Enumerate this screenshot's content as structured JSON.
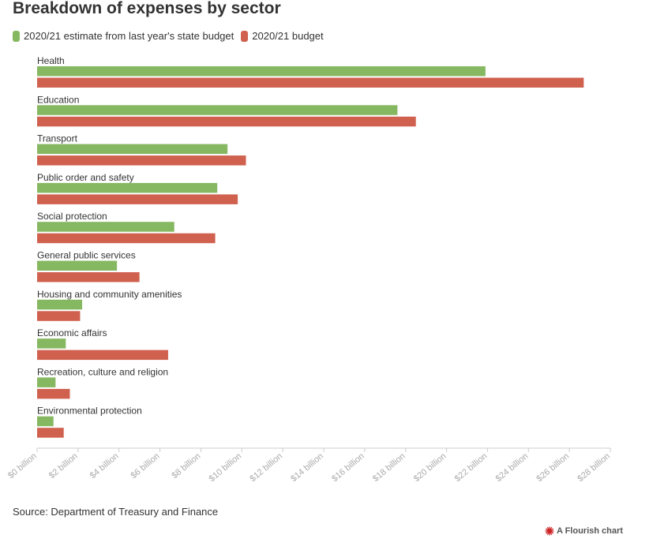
{
  "title": "Breakdown of expenses by sector",
  "source": "Source: Department of Treasury and Finance",
  "credit": "A Flourish chart",
  "colors": {
    "series1": "#86b861",
    "series2": "#d0614f",
    "axis": "#cccccc",
    "credit_icon": "#cc2222"
  },
  "chart_data": {
    "type": "bar",
    "orientation": "horizontal",
    "title": "Breakdown of expenses by sector",
    "categories": [
      "Health",
      "Education",
      "Transport",
      "Public order and safety",
      "Social protection",
      "General public services",
      "Housing and community amenities",
      "Economic affairs",
      "Recreation, culture and religion",
      "Environmental protection"
    ],
    "series": [
      {
        "name": "2020/21 estimate from last year's state budget",
        "values": [
          21.9,
          17.6,
          9.3,
          8.8,
          6.7,
          3.9,
          2.2,
          1.4,
          0.9,
          0.8
        ]
      },
      {
        "name": "2020/21 budget",
        "values": [
          26.7,
          18.5,
          10.2,
          9.8,
          8.7,
          5.0,
          2.1,
          6.4,
          1.6,
          1.3
        ]
      }
    ],
    "xlim": [
      0,
      28
    ],
    "xticks": [
      "$0 billion",
      "$2 billion",
      "$4 billion",
      "$6 billion",
      "$8 billion",
      "$10 billion",
      "$12 billion",
      "$14 billion",
      "$16 billion",
      "$18 billion",
      "$20 billion",
      "$22 billion",
      "$24 billion",
      "$26 billion",
      "$28 billion"
    ],
    "xlabel": "",
    "ylabel": "",
    "legend_position": "top-left",
    "grid": false
  }
}
